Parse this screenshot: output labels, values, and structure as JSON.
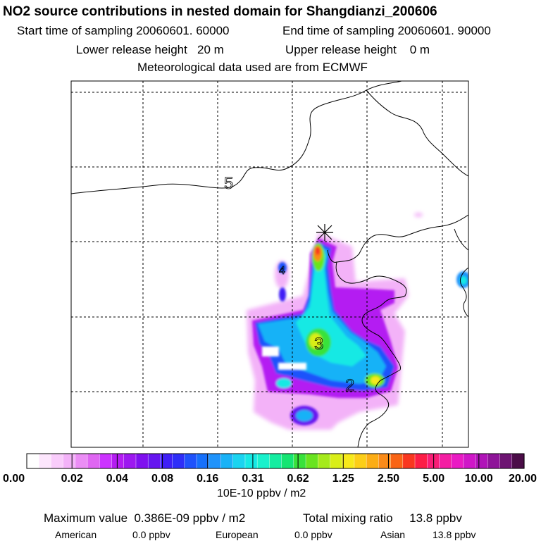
{
  "header": {
    "title": "NO2 source contributions in nested domain for Shangdianzi_200606",
    "start": "Start time of sampling 20060601. 60000",
    "end": "End time of sampling 20060601. 90000",
    "lower": "Lower release height   20 m",
    "upper": "Upper release height    0 m",
    "met": "Meteorological data used are from ECMWF"
  },
  "colorbar": {
    "unit": "10E-10 ppbv / m2",
    "ticks": [
      "0.00",
      "0.02",
      "0.04",
      "0.08",
      "0.16",
      "0.31",
      "0.62",
      "1.25",
      "2.50",
      "5.00",
      "10.00",
      "20.00"
    ],
    "colors": [
      "#ffffff",
      "#fde6fd",
      "#f9ccfb",
      "#f3b2f8",
      "#eb8df5",
      "#df66f2",
      "#cc33ff",
      "#b41cf2",
      "#9d18f0",
      "#7f10ef",
      "#6616f0",
      "#3f1ff6",
      "#2e2ef8",
      "#1f52fb",
      "#1670fb",
      "#1f93fb",
      "#19b2f7",
      "#1ad4f0",
      "#16e9e4",
      "#19f1cc",
      "#14eda1",
      "#15e572",
      "#38e23b",
      "#69e41f",
      "#a5ea1b",
      "#d9ee18",
      "#f7e91a",
      "#fcce17",
      "#fcad15",
      "#fb8b18",
      "#f96415",
      "#f9371f",
      "#fc1d46",
      "#f91d76",
      "#f41ea3",
      "#ea1bc4",
      "#d017c8",
      "#b014b8",
      "#8e1499",
      "#6d1472",
      "#4b0d48"
    ]
  },
  "footer": {
    "max": "Maximum value  0.386E-09 ppbv / m2",
    "mixing": "Total mixing ratio     13.8 ppbv",
    "american_label": "American",
    "american_val": "0.0 ppbv",
    "european_label": "European",
    "european_val": "0.0 ppbv",
    "asian_label": "Asian",
    "asian_val": "13.8 ppbv"
  },
  "chart_data": {
    "type": "heatmap",
    "title": "NO2 source contributions in nested domain for Shangdianzi_200606",
    "colorbar_ticks": [
      0.0,
      0.02,
      0.04,
      0.08,
      0.16,
      0.31,
      0.62,
      1.25,
      2.5,
      5.0,
      10.0,
      20.0
    ],
    "colorbar_label": "10E-10 ppbv / m2",
    "map_labels": [
      "5",
      "4",
      "3",
      "2"
    ],
    "receptor": "Shangdianzi",
    "grid": true,
    "maximum": "0.386E-09 ppbv / m2",
    "total_mixing_ratio": "13.8 ppbv",
    "contributions": {
      "American": "0.0 ppbv",
      "European": "0.0 ppbv",
      "Asian": "13.8 ppbv"
    }
  }
}
